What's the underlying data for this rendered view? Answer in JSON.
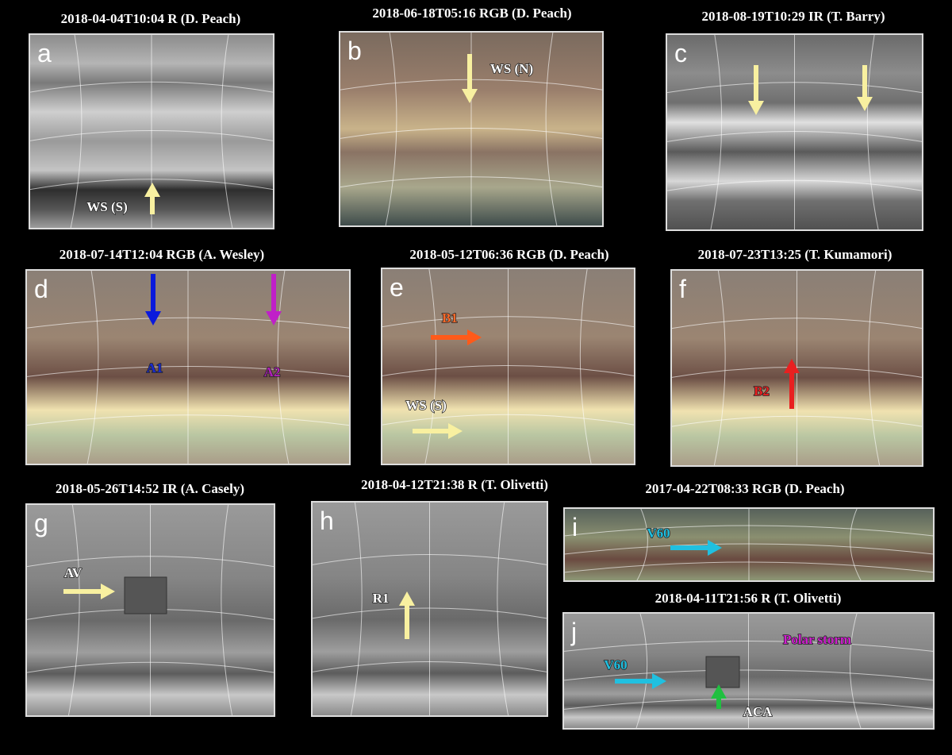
{
  "panels": [
    {
      "letter": "a",
      "title": "2018-04-04T10:04 R (D. Peach)",
      "labels": [
        "WS (S)"
      ]
    },
    {
      "letter": "b",
      "title": "2018-06-18T05:16 RGB (D. Peach)",
      "labels": [
        "WS (N)"
      ]
    },
    {
      "letter": "c",
      "title": "2018-08-19T10:29 IR (T. Barry)"
    },
    {
      "letter": "d",
      "title": "2018-07-14T12:04 RGB (A. Wesley)",
      "labels": [
        "A1",
        "A2"
      ]
    },
    {
      "letter": "e",
      "title": "2018-05-12T06:36 RGB (D. Peach)",
      "labels": [
        "B1",
        "WS (S)"
      ]
    },
    {
      "letter": "f",
      "title": "2018-07-23T13:25 (T. Kumamori)",
      "labels": [
        "B2"
      ]
    },
    {
      "letter": "g",
      "title": "2018-05-26T14:52 IR (A. Casely)",
      "labels": [
        "AV"
      ]
    },
    {
      "letter": "h",
      "title": "2018-04-12T21:38 R (T. Olivetti)",
      "labels": [
        "R1"
      ]
    },
    {
      "letter": "i",
      "title": "2017-04-22T08:33 RGB (D. Peach)",
      "labels": [
        "V60"
      ]
    },
    {
      "letter": "j",
      "title": "2018-04-11T21:56 R (T. Olivetti)",
      "labels": [
        "V60",
        "Polar storm",
        "ACA"
      ]
    }
  ]
}
